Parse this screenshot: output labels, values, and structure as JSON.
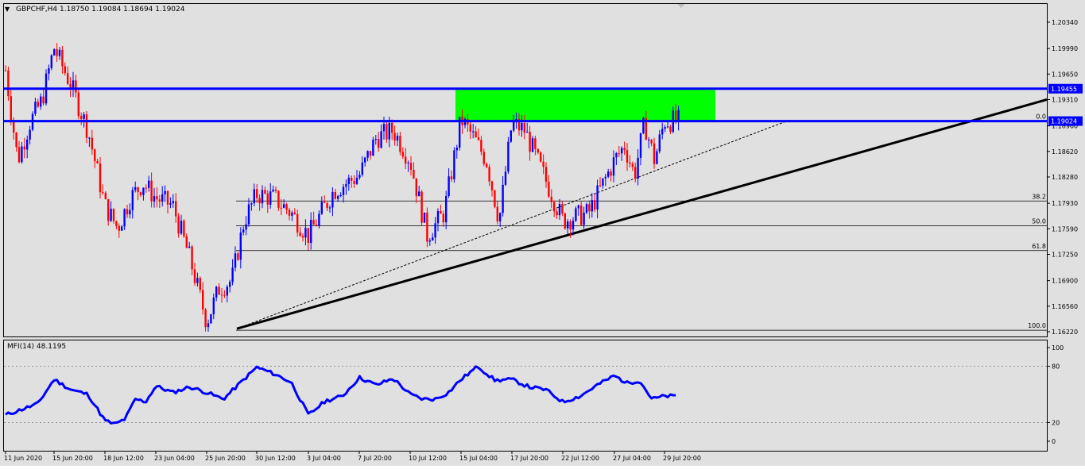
{
  "header": {
    "menu_arrow": "▼",
    "title": "GBPCHF,H4  1.18750 1.19084 1.18694 1.19024"
  },
  "colors": {
    "background": "#e0e0e0",
    "bull": "#0000ff",
    "bear": "#ff0000",
    "level_line": "#0000ff",
    "zone": "#00ff00",
    "trendline": "#000000",
    "mfi_line": "#0000ff"
  },
  "price_axis": {
    "ticks": [
      "1.20340",
      "1.19990",
      "1.19650",
      "1.19310",
      "1.18960",
      "1.18620",
      "1.18280",
      "1.17930",
      "1.17590",
      "1.17250",
      "1.16900",
      "1.16560",
      "1.16220"
    ],
    "labels": [
      {
        "text": "1.19455",
        "price": 1.19455
      },
      {
        "text": "1.19024",
        "price": 1.19024
      }
    ]
  },
  "time_axis": [
    "11 Jun 2020",
    "15 Jun 20:00",
    "18 Jun 12:00",
    "23 Jun 04:00",
    "25 Jun 20:00",
    "30 Jun 12:00",
    "3 Jul 04:00",
    "7 Jul 20:00",
    "10 Jul 12:00",
    "15 Jul 04:00",
    "17 Jul 20:00",
    "22 Jul 12:00",
    "27 Jul 04:00",
    "29 Jul 20:00"
  ],
  "fibonacci": [
    {
      "label": "0.0",
      "price": 1.19024
    },
    {
      "label": "38.2",
      "price": 1.1796
    },
    {
      "label": "50.0",
      "price": 1.1763
    },
    {
      "label": "61.8",
      "price": 1.173
    },
    {
      "label": "100.0",
      "price": 1.1624
    }
  ],
  "mfi": {
    "title": "MFI(14) 48.1195",
    "ticks": [
      "100",
      "80",
      "20",
      "0"
    ]
  },
  "chart_data": {
    "type": "candlestick",
    "symbol": "GBPCHF",
    "timeframe": "H4",
    "ohlc_last": {
      "open": 1.1875,
      "high": 1.19084,
      "low": 1.18694,
      "close": 1.19024
    },
    "ylim": [
      1.1622,
      1.2053
    ],
    "horizontal_levels": [
      1.19455,
      1.19024
    ],
    "resistance_zone": {
      "from": 1.19024,
      "to": 1.19455,
      "start": "15 Jul 04:00",
      "end": "29 Jul 20:00"
    },
    "trendline": {
      "start": {
        "time": "25 Jun 20:00",
        "price": 1.1626
      },
      "end_price": 1.1931
    },
    "dashed_trendline": {
      "start": {
        "time": "25 Jun 20:00",
        "price": 1.1626
      },
      "end_price": 1.19024
    },
    "price_anchors": [
      {
        "time": "11 Jun 2020",
        "price": 1.197
      },
      {
        "time": "12 Jun",
        "price": 1.185
      },
      {
        "time": "13 Jun",
        "price": 1.19
      },
      {
        "time": "14 Jun",
        "price": 1.193
      },
      {
        "time": "15 Jun 20:00",
        "price": 1.2
      },
      {
        "time": "16 Jun",
        "price": 1.195
      },
      {
        "time": "17 Jun",
        "price": 1.189
      },
      {
        "time": "18 Jun 12:00",
        "price": 1.179
      },
      {
        "time": "19 Jun",
        "price": 1.176
      },
      {
        "time": "21 Jun",
        "price": 1.18
      },
      {
        "time": "22 Jun",
        "price": 1.182
      },
      {
        "time": "23 Jun 04:00",
        "price": 1.18
      },
      {
        "time": "24 Jun",
        "price": 1.179
      },
      {
        "time": "25 Jun",
        "price": 1.172
      },
      {
        "time": "25 Jun 20:00",
        "price": 1.1635
      },
      {
        "time": "27 Jun",
        "price": 1.168
      },
      {
        "time": "29 Jun",
        "price": 1.169
      },
      {
        "time": "30 Jun",
        "price": 1.177
      },
      {
        "time": "30 Jun 12:00",
        "price": 1.1805
      },
      {
        "time": "1 Jul",
        "price": 1.18
      },
      {
        "time": "2 Jul",
        "price": 1.178
      },
      {
        "time": "3 Jul 04:00",
        "price": 1.175
      },
      {
        "time": "6 Jul",
        "price": 1.181
      },
      {
        "time": "7 Jul 20:00",
        "price": 1.183
      },
      {
        "time": "8 Jul",
        "price": 1.188
      },
      {
        "time": "9 Jul",
        "price": 1.189
      },
      {
        "time": "10 Jul 12:00",
        "price": 1.185
      },
      {
        "time": "13 Jul",
        "price": 1.175
      },
      {
        "time": "14 Jul",
        "price": 1.178
      },
      {
        "time": "15 Jul 04:00",
        "price": 1.1905
      },
      {
        "time": "16 Jul",
        "price": 1.188
      },
      {
        "time": "16 Jul 12:00",
        "price": 1.185
      },
      {
        "time": "17 Jul",
        "price": 1.177
      },
      {
        "time": "17 Jul 20:00",
        "price": 1.19
      },
      {
        "time": "20 Jul",
        "price": 1.189
      },
      {
        "time": "21 Jul",
        "price": 1.185
      },
      {
        "time": "21 Jul 12:00",
        "price": 1.181
      },
      {
        "time": "22 Jul 12:00",
        "price": 1.177
      },
      {
        "time": "24 Jul",
        "price": 1.178
      },
      {
        "time": "27 Jul 04:00",
        "price": 1.185
      },
      {
        "time": "28 Jul",
        "price": 1.187
      },
      {
        "time": "28 Jul 12:00",
        "price": 1.183
      },
      {
        "time": "29 Jul",
        "price": 1.19
      },
      {
        "time": "29 Jul 12:00",
        "price": 1.185
      },
      {
        "time": "29 Jul 20:00",
        "price": 1.19024
      }
    ],
    "mfi_series": [
      {
        "time": "11 Jun 2020",
        "value": 28
      },
      {
        "time": "12 Jun",
        "value": 34
      },
      {
        "time": "13 Jun",
        "value": 40
      },
      {
        "time": "15 Jun 20:00",
        "value": 66
      },
      {
        "time": "16 Jun",
        "value": 55
      },
      {
        "time": "17 Jun",
        "value": 50
      },
      {
        "time": "18 Jun 12:00",
        "value": 22
      },
      {
        "time": "19 Jun",
        "value": 18
      },
      {
        "time": "20 Jun",
        "value": 24
      },
      {
        "time": "21 Jun",
        "value": 45
      },
      {
        "time": "22 Jun",
        "value": 42
      },
      {
        "time": "23 Jun 04:00",
        "value": 59
      },
      {
        "time": "24 Jun",
        "value": 52
      },
      {
        "time": "25 Jun",
        "value": 58
      },
      {
        "time": "25 Jun 20:00",
        "value": 52
      },
      {
        "time": "27 Jun",
        "value": 45
      },
      {
        "time": "29 Jun",
        "value": 62
      },
      {
        "time": "30 Jun 12:00",
        "value": 79
      },
      {
        "time": "1 Jul",
        "value": 72
      },
      {
        "time": "2 Jul",
        "value": 63
      },
      {
        "time": "3 Jul 04:00",
        "value": 28
      },
      {
        "time": "4 Jul",
        "value": 43
      },
      {
        "time": "6 Jul",
        "value": 48
      },
      {
        "time": "7 Jul 20:00",
        "value": 68
      },
      {
        "time": "8 Jul",
        "value": 60
      },
      {
        "time": "9 Jul",
        "value": 67
      },
      {
        "time": "10 Jul 12:00",
        "value": 50
      },
      {
        "time": "11 Jul",
        "value": 45
      },
      {
        "time": "13 Jul",
        "value": 45
      },
      {
        "time": "14 Jul",
        "value": 52
      },
      {
        "time": "15 Jul 04:00",
        "value": 66
      },
      {
        "time": "16 Jul",
        "value": 80
      },
      {
        "time": "17 Jul",
        "value": 65
      },
      {
        "time": "17 Jul 20:00",
        "value": 66
      },
      {
        "time": "20 Jul",
        "value": 58
      },
      {
        "time": "21 Jul",
        "value": 55
      },
      {
        "time": "22 Jul 12:00",
        "value": 42
      },
      {
        "time": "24 Jul",
        "value": 48
      },
      {
        "time": "25 Jul",
        "value": 60
      },
      {
        "time": "27 Jul 04:00",
        "value": 70
      },
      {
        "time": "28 Jul",
        "value": 62
      },
      {
        "time": "28 Jul 12:00",
        "value": 65
      },
      {
        "time": "29 Jul",
        "value": 45
      },
      {
        "time": "29 Jul 20:00",
        "value": 48.1195
      }
    ]
  }
}
